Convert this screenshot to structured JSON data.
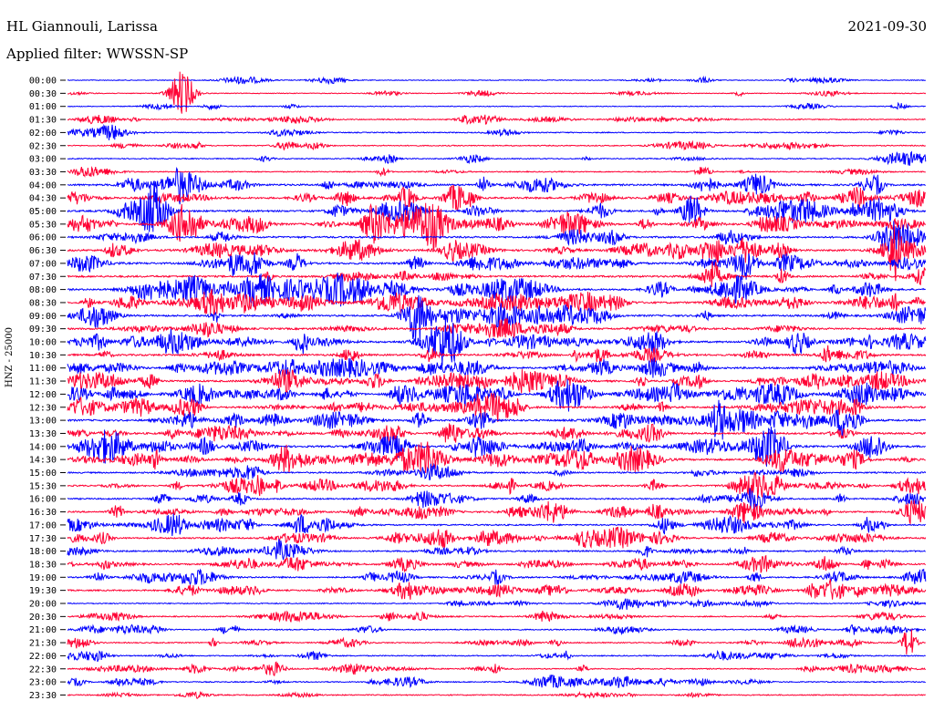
{
  "header": {
    "station": "HL Giannouli, Larissa",
    "date": "2021-09-30",
    "filter": "Applied filter: WWSSN-SP"
  },
  "chart_data": {
    "type": "line",
    "ylabel": "HNZ - 25000",
    "colors": [
      "#0000ff",
      "#ff0033"
    ],
    "rows": [
      "00:00",
      "00:30",
      "01:00",
      "01:30",
      "02:00",
      "02:30",
      "03:00",
      "03:30",
      "04:00",
      "04:30",
      "05:00",
      "05:30",
      "06:00",
      "06:30",
      "07:00",
      "07:30",
      "08:00",
      "08:30",
      "09:00",
      "09:30",
      "10:00",
      "10:30",
      "11:00",
      "11:30",
      "12:00",
      "12:30",
      "13:00",
      "13:30",
      "14:00",
      "14:30",
      "15:00",
      "15:30",
      "16:00",
      "16:30",
      "17:00",
      "17:30",
      "18:00",
      "18:30",
      "19:00",
      "19:30",
      "20:00",
      "20:30",
      "21:00",
      "21:30",
      "22:00",
      "22:30",
      "23:00",
      "23:30"
    ],
    "grid": false
  }
}
